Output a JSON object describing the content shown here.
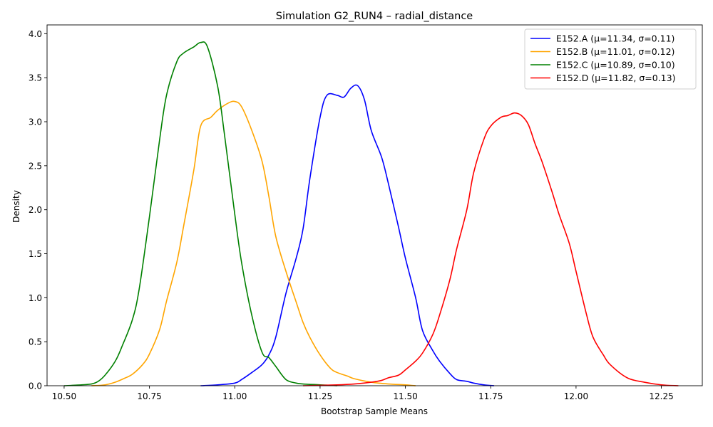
{
  "chart_data": {
    "type": "line",
    "title": "Simulation G2_RUN4 – radial_distance",
    "xlabel": "Bootstrap Sample Means",
    "ylabel": "Density",
    "xlim": [
      10.45,
      12.37
    ],
    "ylim": [
      0,
      4.1
    ],
    "xticks": [
      10.5,
      10.75,
      11.0,
      11.25,
      11.5,
      11.75,
      12.0,
      12.25
    ],
    "yticks": [
      0.0,
      0.5,
      1.0,
      1.5,
      2.0,
      2.5,
      3.0,
      3.5,
      4.0
    ],
    "grid": false,
    "legend_position": "top-right",
    "series": [
      {
        "name": "E152.A (μ=11.34, σ=0.11)",
        "color": "#0000ff",
        "x": [
          10.9,
          10.95,
          11.0,
          11.02,
          11.05,
          11.08,
          11.1,
          11.12,
          11.15,
          11.18,
          11.2,
          11.22,
          11.25,
          11.27,
          11.3,
          11.32,
          11.34,
          11.36,
          11.38,
          11.4,
          11.43,
          11.45,
          11.48,
          11.5,
          11.53,
          11.55,
          11.58,
          11.6,
          11.63,
          11.65,
          11.68,
          11.7,
          11.73,
          11.76
        ],
        "y": [
          0.0,
          0.01,
          0.03,
          0.07,
          0.15,
          0.24,
          0.35,
          0.55,
          1.05,
          1.45,
          1.78,
          2.35,
          3.05,
          3.3,
          3.3,
          3.28,
          3.38,
          3.41,
          3.25,
          2.9,
          2.6,
          2.3,
          1.8,
          1.45,
          1.0,
          0.63,
          0.4,
          0.28,
          0.14,
          0.07,
          0.05,
          0.03,
          0.01,
          0.0
        ]
      },
      {
        "name": "E152.B (μ=11.01, σ=0.12)",
        "color": "#ffa500",
        "x": [
          10.58,
          10.62,
          10.65,
          10.68,
          10.7,
          10.73,
          10.75,
          10.78,
          10.8,
          10.83,
          10.85,
          10.88,
          10.9,
          10.93,
          10.95,
          10.98,
          11.0,
          11.02,
          11.05,
          11.08,
          11.1,
          11.12,
          11.15,
          11.18,
          11.2,
          11.22,
          11.25,
          11.28,
          11.3,
          11.33,
          11.35,
          11.4,
          11.45,
          11.5,
          11.53
        ],
        "y": [
          0.0,
          0.01,
          0.04,
          0.09,
          0.13,
          0.24,
          0.36,
          0.64,
          0.96,
          1.4,
          1.81,
          2.45,
          2.95,
          3.05,
          3.13,
          3.21,
          3.23,
          3.17,
          2.9,
          2.55,
          2.15,
          1.7,
          1.3,
          0.95,
          0.72,
          0.55,
          0.35,
          0.2,
          0.15,
          0.11,
          0.08,
          0.04,
          0.02,
          0.01,
          0.0
        ]
      },
      {
        "name": "E152.C (μ=10.89, σ=0.10)",
        "color": "#008000",
        "x": [
          10.5,
          10.55,
          10.58,
          10.6,
          10.62,
          10.65,
          10.67,
          10.7,
          10.72,
          10.75,
          10.78,
          10.8,
          10.83,
          10.85,
          10.88,
          10.9,
          10.92,
          10.95,
          10.97,
          11.0,
          11.02,
          11.05,
          11.08,
          11.1,
          11.12,
          11.15,
          11.18,
          11.2,
          11.25,
          11.3
        ],
        "y": [
          0.0,
          0.01,
          0.02,
          0.05,
          0.12,
          0.28,
          0.45,
          0.75,
          1.1,
          1.92,
          2.8,
          3.3,
          3.68,
          3.78,
          3.85,
          3.9,
          3.85,
          3.4,
          2.85,
          1.95,
          1.4,
          0.8,
          0.38,
          0.32,
          0.22,
          0.07,
          0.03,
          0.02,
          0.01,
          0.0
        ]
      },
      {
        "name": "E152.D (μ=11.82, σ=0.13)",
        "color": "#ff0000",
        "x": [
          11.2,
          11.3,
          11.35,
          11.4,
          11.43,
          11.45,
          11.48,
          11.5,
          11.53,
          11.55,
          11.58,
          11.6,
          11.63,
          11.65,
          11.68,
          11.7,
          11.73,
          11.75,
          11.78,
          11.8,
          11.82,
          11.84,
          11.86,
          11.88,
          11.9,
          11.93,
          11.95,
          11.98,
          12.0,
          12.03,
          12.05,
          12.08,
          12.1,
          12.15,
          12.2,
          12.25,
          12.3
        ],
        "y": [
          0.0,
          0.01,
          0.02,
          0.04,
          0.06,
          0.09,
          0.12,
          0.18,
          0.28,
          0.37,
          0.58,
          0.8,
          1.2,
          1.55,
          2.0,
          2.42,
          2.8,
          2.95,
          3.05,
          3.07,
          3.1,
          3.07,
          2.97,
          2.75,
          2.55,
          2.2,
          1.95,
          1.62,
          1.3,
          0.82,
          0.55,
          0.35,
          0.24,
          0.09,
          0.04,
          0.01,
          0.0
        ]
      }
    ]
  }
}
